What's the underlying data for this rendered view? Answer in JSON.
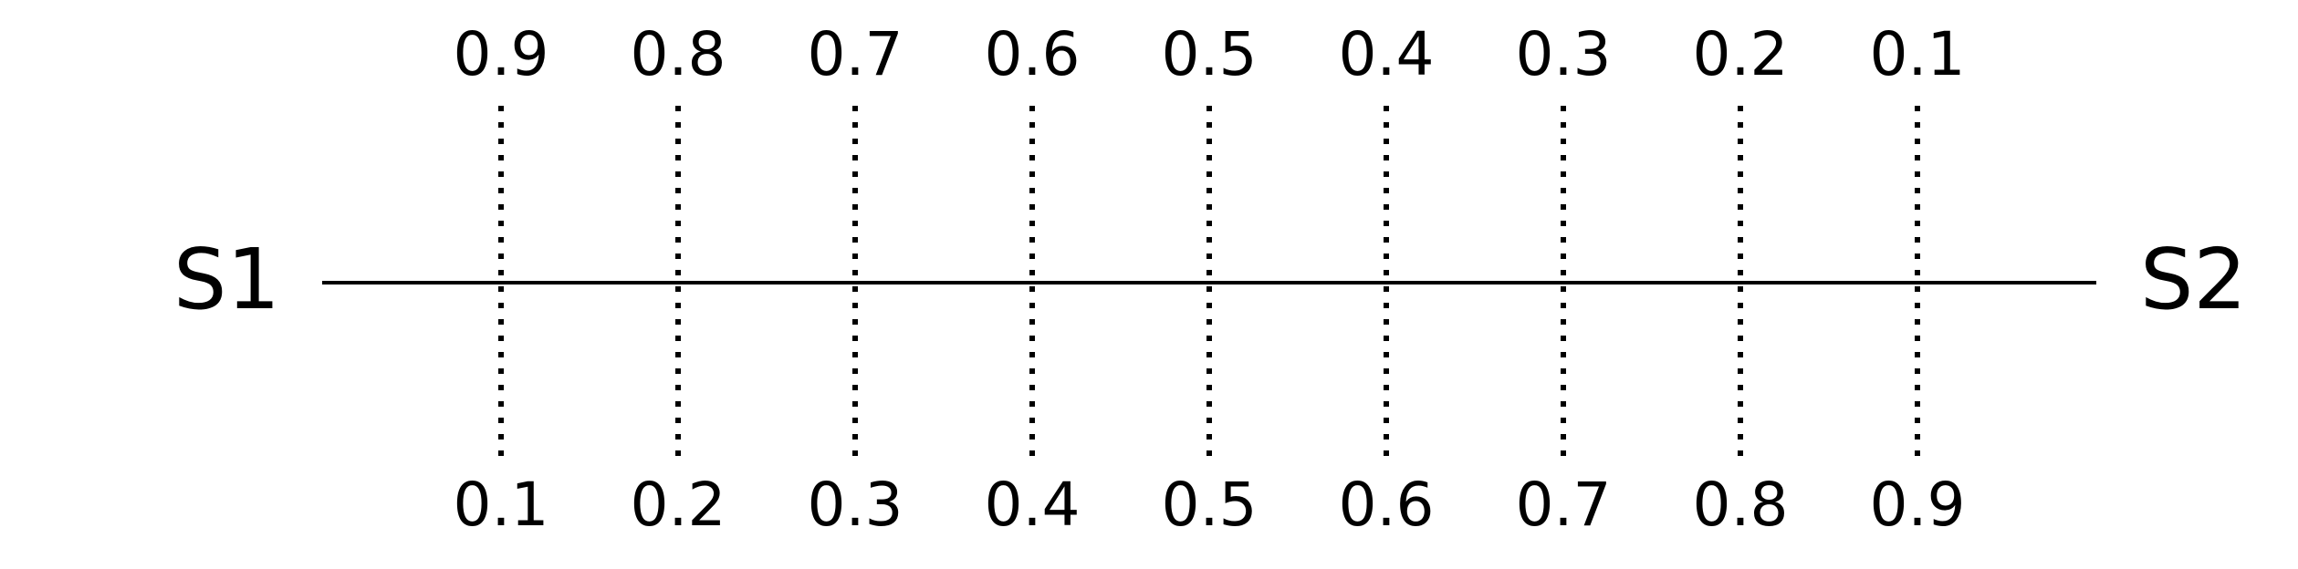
{
  "endpoints": {
    "left": "S1",
    "right": "S2"
  },
  "ticks": [
    {
      "top": "0.9",
      "bottom": "0.1"
    },
    {
      "top": "0.8",
      "bottom": "0.2"
    },
    {
      "top": "0.7",
      "bottom": "0.3"
    },
    {
      "top": "0.6",
      "bottom": "0.4"
    },
    {
      "top": "0.5",
      "bottom": "0.5"
    },
    {
      "top": "0.4",
      "bottom": "0.6"
    },
    {
      "top": "0.3",
      "bottom": "0.7"
    },
    {
      "top": "0.2",
      "bottom": "0.8"
    },
    {
      "top": "0.1",
      "bottom": "0.9"
    }
  ],
  "colors": {
    "ink": "#000000",
    "background": "#ffffff"
  }
}
